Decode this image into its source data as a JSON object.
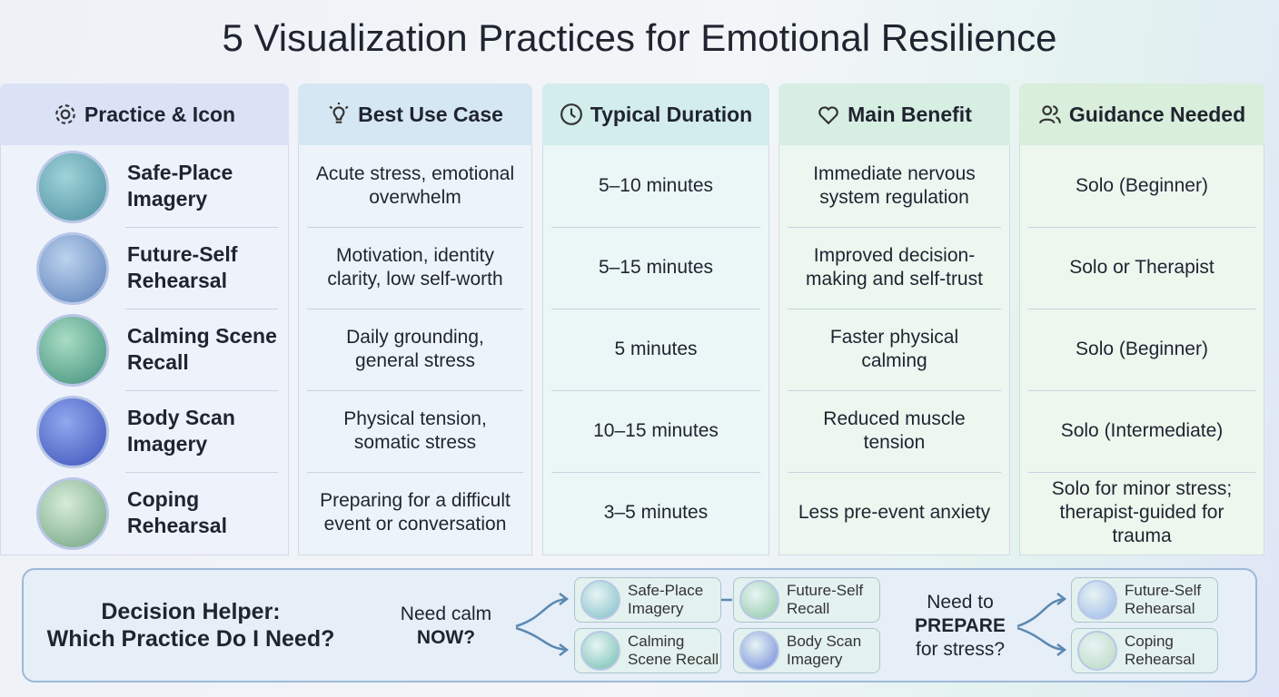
{
  "title": "5 Visualization Practices for Emotional Resilience",
  "columns": [
    "Practice & Icon",
    "Best Use Case",
    "Typical Duration",
    "Main Benefit",
    "Guidance Needed"
  ],
  "rows": [
    {
      "practice": "Safe-Place Imagery",
      "use_case": "Acute stress, emotional overwhelm",
      "duration": "5–10 minutes",
      "benefit": "Immediate nervous system regulation",
      "guidance": "Solo (Beginner)"
    },
    {
      "practice": "Future-Self Rehearsal",
      "use_case": "Motivation, identity clarity, low self-worth",
      "duration": "5–15 minutes",
      "benefit": "Improved decision-making and self-trust",
      "guidance": "Solo or Therapist"
    },
    {
      "practice": "Calming Scene Recall",
      "use_case": "Daily grounding, general stress",
      "duration": "5 minutes",
      "benefit": "Faster physical calming",
      "guidance": "Solo (Beginner)"
    },
    {
      "practice": "Body Scan Imagery",
      "use_case": "Physical tension, somatic stress",
      "duration": "10–15 minutes",
      "benefit": "Reduced muscle tension",
      "guidance": "Solo (Intermediate)"
    },
    {
      "practice": "Coping Rehearsal",
      "use_case": "Preparing for a difficult event or conversation",
      "duration": "3–5 minutes",
      "benefit": "Less pre-event anxiety",
      "guidance": "Solo for minor stress; therapist-guided for trauma"
    }
  ],
  "decision_helper": {
    "title": [
      "Decision Helper:",
      "Which Practice Do I Need?"
    ],
    "calm": {
      "question": [
        "Need calm",
        "NOW?"
      ],
      "options": [
        "Safe-Place Imagery",
        "Future-Self Recall",
        "Calming Scene Recall",
        "Body Scan Imagery"
      ]
    },
    "prepare": {
      "question": [
        "Need to",
        "PREPARE",
        "for stress?"
      ],
      "options": [
        "Future-Self Rehearsal",
        "Coping Rehearsal"
      ]
    }
  }
}
